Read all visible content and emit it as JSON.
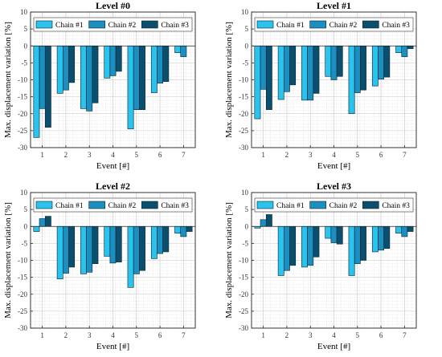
{
  "chart_data": [
    {
      "type": "bar",
      "title": "Level #0",
      "xlabel": "Event [#]",
      "ylabel": "Max. displacement variation [%]",
      "categories": [
        "1",
        "2",
        "3",
        "4",
        "5",
        "6",
        "7"
      ],
      "ylim": [
        -30,
        10
      ],
      "yticks": [
        "10",
        "5",
        "0",
        "-5",
        "-10",
        "-15",
        "-20",
        "-25",
        "-30"
      ],
      "grid": true,
      "legend": "top",
      "series": [
        {
          "name": "Chain #1",
          "color": "#29c3ee",
          "values": [
            -27.0,
            -14.0,
            -18.5,
            -9.5,
            -24.5,
            -13.8,
            -2.0
          ]
        },
        {
          "name": "Chain #2",
          "color": "#1a8fc0",
          "values": [
            -18.5,
            -13.0,
            -19.2,
            -8.8,
            -18.8,
            -11.0,
            -3.2
          ]
        },
        {
          "name": "Chain #3",
          "color": "#0a4f6e",
          "values": [
            -24.0,
            -10.8,
            -16.8,
            -7.5,
            -18.8,
            -10.5,
            0.0
          ]
        }
      ]
    },
    {
      "type": "bar",
      "title": "Level #1",
      "xlabel": "Event [#]",
      "ylabel": "Max. displacement variation [%]",
      "categories": [
        "1",
        "2",
        "3",
        "4",
        "5",
        "6",
        "7"
      ],
      "ylim": [
        -30,
        10
      ],
      "yticks": [
        "10",
        "5",
        "0",
        "-5",
        "-10",
        "-15",
        "-20",
        "-25",
        "-30"
      ],
      "grid": true,
      "legend": "top",
      "series": [
        {
          "name": "Chain #1",
          "color": "#29c3ee",
          "values": [
            -21.5,
            -15.8,
            -16.0,
            -9.0,
            -20.0,
            -11.8,
            -2.0
          ]
        },
        {
          "name": "Chain #2",
          "color": "#1a8fc0",
          "values": [
            -12.8,
            -13.5,
            -16.0,
            -10.0,
            -13.8,
            -9.8,
            -3.2
          ]
        },
        {
          "name": "Chain #3",
          "color": "#0a4f6e",
          "values": [
            -18.8,
            -11.5,
            -14.0,
            -9.0,
            -13.0,
            -9.2,
            -0.8
          ]
        }
      ]
    },
    {
      "type": "bar",
      "title": "Level #2",
      "xlabel": "Event [#]",
      "ylabel": "Max. displacement variation [%]",
      "categories": [
        "1",
        "2",
        "3",
        "4",
        "5",
        "6",
        "7"
      ],
      "ylim": [
        -30,
        10
      ],
      "yticks": [
        "10",
        "5",
        "0",
        "-5",
        "-10",
        "-15",
        "-20",
        "-25",
        "-30"
      ],
      "grid": true,
      "legend": "top",
      "series": [
        {
          "name": "Chain #1",
          "color": "#29c3ee",
          "values": [
            -1.5,
            -15.5,
            -14.0,
            -8.8,
            -18.0,
            -9.5,
            -2.0
          ]
        },
        {
          "name": "Chain #2",
          "color": "#1a8fc0",
          "values": [
            2.3,
            -13.8,
            -13.5,
            -10.8,
            -14.0,
            -8.0,
            -3.0
          ]
        },
        {
          "name": "Chain #3",
          "color": "#0a4f6e",
          "values": [
            3.0,
            -12.0,
            -11.0,
            -10.5,
            -13.0,
            -7.5,
            -1.5
          ]
        }
      ]
    },
    {
      "type": "bar",
      "title": "Level #3",
      "xlabel": "Event [#]",
      "ylabel": "Max. displacement variation [%]",
      "categories": [
        "1",
        "2",
        "3",
        "4",
        "5",
        "6",
        "7"
      ],
      "ylim": [
        -30,
        10
      ],
      "yticks": [
        "10",
        "5",
        "0",
        "-5",
        "-10",
        "-15",
        "-20",
        "-25",
        "-30"
      ],
      "grid": true,
      "legend": "top",
      "series": [
        {
          "name": "Chain #1",
          "color": "#29c3ee",
          "values": [
            -0.5,
            -14.5,
            -12.0,
            -3.5,
            -14.5,
            -7.5,
            -2.0
          ]
        },
        {
          "name": "Chain #2",
          "color": "#1a8fc0",
          "values": [
            2.0,
            -13.0,
            -11.5,
            -4.8,
            -11.0,
            -7.0,
            -3.0
          ]
        },
        {
          "name": "Chain #3",
          "color": "#0a4f6e",
          "values": [
            3.5,
            -11.5,
            -9.0,
            -5.2,
            -10.0,
            -6.5,
            -1.5
          ]
        }
      ]
    }
  ]
}
